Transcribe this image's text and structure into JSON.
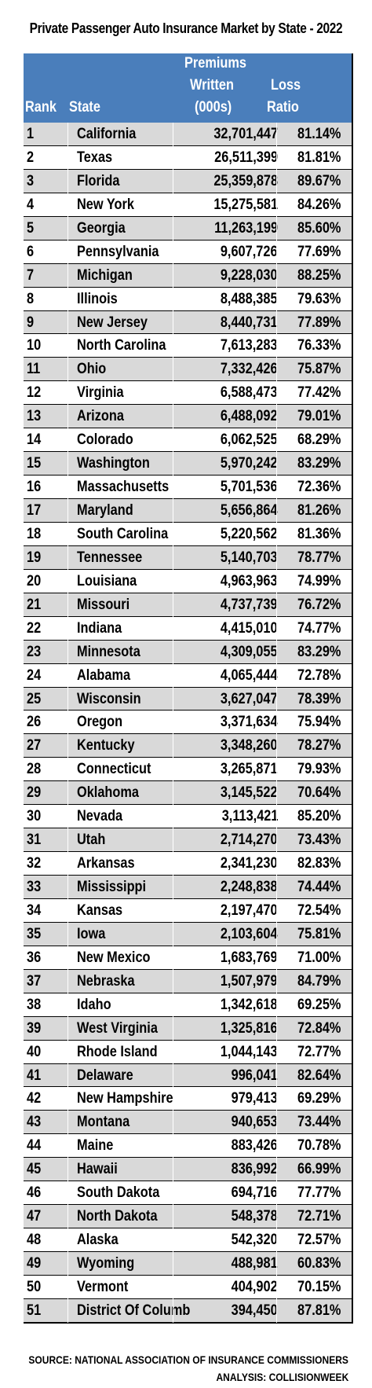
{
  "chart_data": {
    "type": "table",
    "title": "Private Passenger Auto Insurance Market by State - 2022",
    "columns": [
      "Rank",
      "State",
      "Premiums Written (000s)",
      "Loss Ratio"
    ],
    "header": {
      "rank": "Rank",
      "state": "State",
      "premiums_line1": "Premiums",
      "premiums_line2": "Written",
      "premiums_line3": "(000s)",
      "loss_line1": "Loss",
      "loss_line2": "Ratio"
    },
    "rows": [
      [
        "1",
        "California",
        "32,701,447",
        "81.14%"
      ],
      [
        "2",
        "Texas",
        "26,511,399",
        "81.81%"
      ],
      [
        "3",
        "Florida",
        "25,359,878",
        "89.67%"
      ],
      [
        "4",
        "New York",
        "15,275,581",
        "84.26%"
      ],
      [
        "5",
        "Georgia",
        "11,263,199",
        "85.60%"
      ],
      [
        "6",
        "Pennsylvania",
        "9,607,726",
        "77.69%"
      ],
      [
        "7",
        "Michigan",
        "9,228,030",
        "88.25%"
      ],
      [
        "8",
        "Illinois",
        "8,488,385",
        "79.63%"
      ],
      [
        "9",
        "New Jersey",
        "8,440,731",
        "77.89%"
      ],
      [
        "10",
        "North Carolina",
        "7,613,283",
        "76.33%"
      ],
      [
        "11",
        "Ohio",
        "7,332,426",
        "75.87%"
      ],
      [
        "12",
        "Virginia",
        "6,588,473",
        "77.42%"
      ],
      [
        "13",
        "Arizona",
        "6,488,092",
        "79.01%"
      ],
      [
        "14",
        "Colorado",
        "6,062,525",
        "68.29%"
      ],
      [
        "15",
        "Washington",
        "5,970,242",
        "83.29%"
      ],
      [
        "16",
        "Massachusetts",
        "5,701,536",
        "72.36%"
      ],
      [
        "17",
        "Maryland",
        "5,656,864",
        "81.26%"
      ],
      [
        "18",
        "South Carolina",
        "5,220,562",
        "81.36%"
      ],
      [
        "19",
        "Tennessee",
        "5,140,703",
        "78.77%"
      ],
      [
        "20",
        "Louisiana",
        "4,963,963",
        "74.99%"
      ],
      [
        "21",
        "Missouri",
        "4,737,739",
        "76.72%"
      ],
      [
        "22",
        "Indiana",
        "4,415,010",
        "74.77%"
      ],
      [
        "23",
        "Minnesota",
        "4,309,055",
        "83.29%"
      ],
      [
        "24",
        "Alabama",
        "4,065,444",
        "72.78%"
      ],
      [
        "25",
        "Wisconsin",
        "3,627,047",
        "78.39%"
      ],
      [
        "26",
        "Oregon",
        "3,371,634",
        "75.94%"
      ],
      [
        "27",
        "Kentucky",
        "3,348,260",
        "78.27%"
      ],
      [
        "28",
        "Connecticut",
        "3,265,871",
        "79.93%"
      ],
      [
        "29",
        "Oklahoma",
        "3,145,522",
        "70.64%"
      ],
      [
        "30",
        "Nevada",
        "3,113,421",
        "85.20%"
      ],
      [
        "31",
        "Utah",
        "2,714,270",
        "73.43%"
      ],
      [
        "32",
        "Arkansas",
        "2,341,230",
        "82.83%"
      ],
      [
        "33",
        "Mississippi",
        "2,248,838",
        "74.44%"
      ],
      [
        "34",
        "Kansas",
        "2,197,470",
        "72.54%"
      ],
      [
        "35",
        "Iowa",
        "2,103,604",
        "75.81%"
      ],
      [
        "36",
        "New Mexico",
        "1,683,769",
        "71.00%"
      ],
      [
        "37",
        "Nebraska",
        "1,507,979",
        "84.79%"
      ],
      [
        "38",
        "Idaho",
        "1,342,618",
        "69.25%"
      ],
      [
        "39",
        "West Virginia",
        "1,325,816",
        "72.84%"
      ],
      [
        "40",
        "Rhode Island",
        "1,044,143",
        "72.77%"
      ],
      [
        "41",
        "Delaware",
        "996,041",
        "82.64%"
      ],
      [
        "42",
        "New Hampshire",
        "979,413",
        "69.29%"
      ],
      [
        "43",
        "Montana",
        "940,653",
        "73.44%"
      ],
      [
        "44",
        "Maine",
        "883,426",
        "70.78%"
      ],
      [
        "45",
        "Hawaii",
        "836,992",
        "66.99%"
      ],
      [
        "46",
        "South Dakota",
        "694,716",
        "77.77%"
      ],
      [
        "47",
        "North Dakota",
        "548,378",
        "72.71%"
      ],
      [
        "48",
        "Alaska",
        "542,320",
        "72.57%"
      ],
      [
        "49",
        "Wyoming",
        "488,981",
        "60.83%"
      ],
      [
        "50",
        "Vermont",
        "404,902",
        "70.15%"
      ],
      [
        "51",
        "District Of Columb",
        "394,450",
        "87.81%"
      ]
    ],
    "colors": {
      "header_bg": "#4a7ebb",
      "header_text": "#ffffff",
      "row_alt": "#d9d9d9",
      "row_base": "#ffffff"
    }
  },
  "footer": {
    "source": "SOURCE: NATIONAL ASSOCIATION OF INSURANCE COMMISSIONERS",
    "analysis": "ANALYSIS: COLLISIONWEEK"
  }
}
